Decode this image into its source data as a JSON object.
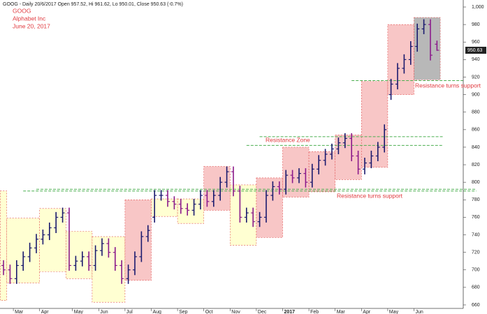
{
  "chart_data": {
    "type": "ohlc",
    "header": "GOOG - Daily 20/6/2017 Open 957.52, Hi 961.62, Lo 950.01, Close 950.63 (-0.7%)",
    "annotations": [
      "GOOG",
      "Alphabet Inc",
      "June 20, 2017",
      "Resistance Zone",
      "Resistance turns support",
      "Resistance turns support"
    ],
    "categories": [
      null,
      null,
      "Mar",
      null,
      null,
      null,
      "Apr",
      null,
      null,
      null,
      null,
      "May",
      null,
      null,
      null,
      "Jun",
      null,
      null,
      null,
      "Jul",
      null,
      null,
      null,
      "Aug",
      null,
      null,
      null,
      "Sep",
      null,
      null,
      null,
      "Oct",
      null,
      null,
      null,
      "Nov",
      null,
      null,
      null,
      "Dec",
      null,
      null,
      null,
      "2017",
      null,
      null,
      null,
      "Feb",
      null,
      null,
      null,
      "Mar",
      null,
      null,
      null,
      "Apr",
      null,
      null,
      null,
      "May",
      null,
      null,
      null,
      "Jun",
      null,
      null,
      null
    ],
    "open": [
      705,
      700,
      690,
      705,
      715,
      725,
      735,
      740,
      748,
      760,
      765,
      705,
      710,
      715,
      705,
      722,
      730,
      720,
      705,
      690,
      700,
      715,
      738,
      760,
      785,
      785,
      778,
      775,
      770,
      768,
      775,
      785,
      778,
      785,
      800,
      812,
      790,
      760,
      765,
      755,
      760,
      785,
      795,
      792,
      808,
      805,
      810,
      800,
      815,
      825,
      832,
      838,
      845,
      850,
      830,
      815,
      822,
      830,
      840,
      900,
      912,
      930,
      940,
      955,
      975,
      980,
      957.52
    ],
    "high": [
      711,
      706,
      711,
      721,
      731,
      741,
      746,
      754,
      766,
      771,
      771,
      716,
      721,
      721,
      728,
      736,
      736,
      726,
      711,
      706,
      721,
      744,
      751,
      791,
      791,
      791,
      784,
      781,
      776,
      781,
      791,
      791,
      791,
      806,
      818,
      818,
      796,
      771,
      771,
      766,
      791,
      801,
      801,
      814,
      814,
      816,
      816,
      821,
      831,
      838,
      844,
      851,
      856,
      856,
      836,
      828,
      836,
      846,
      866,
      918,
      936,
      946,
      961,
      981,
      986,
      986,
      961.62
    ],
    "low": [
      694,
      684,
      684,
      699,
      709,
      719,
      729,
      734,
      742,
      754,
      699,
      699,
      704,
      699,
      699,
      716,
      714,
      699,
      684,
      684,
      694,
      709,
      732,
      754,
      779,
      772,
      769,
      764,
      762,
      762,
      769,
      772,
      772,
      779,
      794,
      784,
      754,
      754,
      749,
      749,
      754,
      779,
      786,
      786,
      799,
      799,
      794,
      794,
      809,
      819,
      826,
      832,
      839,
      824,
      809,
      809,
      816,
      824,
      834,
      894,
      906,
      924,
      934,
      949,
      969,
      939,
      950.01
    ],
    "close": [
      700,
      690,
      705,
      715,
      725,
      735,
      740,
      748,
      760,
      765,
      705,
      710,
      715,
      705,
      722,
      730,
      720,
      705,
      690,
      700,
      715,
      738,
      745,
      785,
      785,
      778,
      775,
      770,
      768,
      775,
      785,
      778,
      785,
      800,
      812,
      790,
      760,
      765,
      755,
      760,
      785,
      795,
      792,
      808,
      805,
      810,
      800,
      815,
      825,
      832,
      838,
      845,
      850,
      830,
      815,
      822,
      830,
      840,
      860,
      912,
      930,
      940,
      955,
      975,
      980,
      945,
      950.63
    ],
    "up_color": "#1a1a6e",
    "down_color": "#8b1a8b",
    "zones": [
      {
        "from": 0,
        "to": 0,
        "low": 665,
        "high": 790,
        "color": "#ffffd2"
      },
      {
        "from": 1,
        "to": 5,
        "low": 685,
        "high": 759,
        "color": "#ffffd2"
      },
      {
        "from": 6,
        "to": 9,
        "low": 698,
        "high": 770,
        "color": "#ffffd2"
      },
      {
        "from": 10,
        "to": 13,
        "low": 690,
        "high": 744,
        "color": "#ffffd2"
      },
      {
        "from": 14,
        "to": 18,
        "low": 663,
        "high": 738,
        "color": "#ffffd2"
      },
      {
        "from": 19,
        "to": 22,
        "low": 688,
        "high": 780,
        "color": "#f8c6c6"
      },
      {
        "from": 23,
        "to": 26,
        "low": 761,
        "high": 781,
        "color": "#ffffd2"
      },
      {
        "from": 27,
        "to": 30,
        "low": 753,
        "high": 781,
        "color": "#ffffd2"
      },
      {
        "from": 31,
        "to": 34,
        "low": 768,
        "high": 818,
        "color": "#f8c6c6"
      },
      {
        "from": 35,
        "to": 38,
        "low": 728,
        "high": 797,
        "color": "#ffffd2"
      },
      {
        "from": 39,
        "to": 42,
        "low": 737,
        "high": 805,
        "color": "#f8c6c6"
      },
      {
        "from": 43,
        "to": 46,
        "low": 783,
        "high": 840,
        "color": "#f8c6c6"
      },
      {
        "from": 47,
        "to": 50,
        "low": 789,
        "high": 835,
        "color": "#f8c6c6"
      },
      {
        "from": 51,
        "to": 54,
        "low": 803,
        "high": 854,
        "color": "#f8c6c6"
      },
      {
        "from": 55,
        "to": 58,
        "low": 817,
        "high": 915,
        "color": "#f8c6c6"
      },
      {
        "from": 59,
        "to": 62,
        "low": 900,
        "high": 980,
        "color": "#f8c6c6"
      },
      {
        "from": 63,
        "to": 66,
        "low": 917,
        "high": 988,
        "color": "#b8b8b8"
      }
    ],
    "levels": [
      {
        "value": 916,
        "from": 53,
        "to": 70,
        "color": "#4caf50"
      },
      {
        "value": 852,
        "from": 39,
        "to": 67,
        "color": "#4caf50"
      },
      {
        "value": 842,
        "from": 37,
        "to": 67,
        "color": "#4caf50"
      },
      {
        "value": 792,
        "from": 5,
        "to": 72,
        "color": "#4caf50"
      },
      {
        "value": 790,
        "from": 3,
        "to": 72,
        "color": "#4caf50"
      }
    ],
    "ylim": [
      656,
      1004
    ],
    "yticks": [
      660,
      680,
      700,
      720,
      740,
      760,
      780,
      800,
      820,
      840,
      860,
      880,
      900,
      920,
      940,
      960,
      980,
      {
        "value": 1000,
        "label": "1,000"
      }
    ]
  }
}
